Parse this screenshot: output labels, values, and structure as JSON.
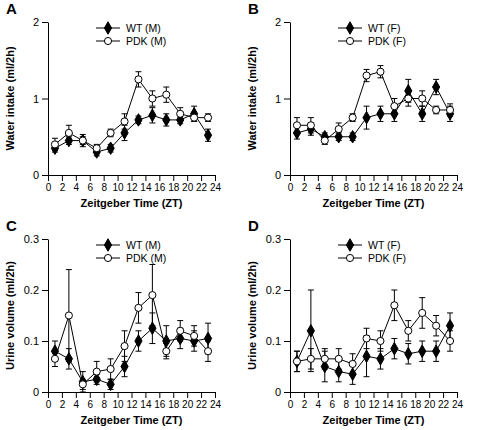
{
  "chart_data": [
    {
      "type": "line",
      "title": "A",
      "x_label": "Zeitgeber Time (ZT)",
      "y_label": "Water intake (ml/2h)",
      "x": [
        1,
        3,
        5,
        7,
        9,
        11,
        13,
        15,
        17,
        19,
        21,
        23
      ],
      "xlim": [
        0,
        24
      ],
      "xticks": [
        0,
        2,
        4,
        6,
        8,
        10,
        12,
        14,
        16,
        18,
        20,
        22,
        24
      ],
      "ylim": [
        0,
        2
      ],
      "yticks": [
        0,
        1,
        2
      ],
      "legend": "upper left",
      "series": [
        {
          "name": "WT (M)",
          "color": "#000000",
          "marker": "diamond",
          "values": [
            0.35,
            0.45,
            0.45,
            0.3,
            0.35,
            0.55,
            0.72,
            0.78,
            0.72,
            0.72,
            0.8,
            0.52
          ],
          "errors": [
            0.05,
            0.05,
            0.05,
            0.05,
            0.05,
            0.1,
            0.05,
            0.1,
            0.08,
            0.05,
            0.1,
            0.08
          ]
        },
        {
          "name": "PDK (M)",
          "color": "#000000",
          "marker": "circle-open",
          "values": [
            0.4,
            0.55,
            0.45,
            0.35,
            0.55,
            0.7,
            1.25,
            1.0,
            1.05,
            0.8,
            0.75,
            0.75
          ],
          "errors": [
            0.08,
            0.1,
            0.08,
            0.05,
            0.05,
            0.1,
            0.1,
            0.1,
            0.1,
            0.08,
            0.05,
            0.05
          ]
        }
      ]
    },
    {
      "type": "line",
      "title": "B",
      "x_label": "Zeitgeber Time (ZT)",
      "y_label": "Water intake (ml/2h)",
      "x": [
        1,
        3,
        5,
        7,
        9,
        11,
        13,
        15,
        17,
        19,
        21,
        23
      ],
      "xlim": [
        0,
        24
      ],
      "xticks": [
        0,
        2,
        4,
        6,
        8,
        10,
        12,
        14,
        16,
        18,
        20,
        22,
        24
      ],
      "ylim": [
        0,
        2
      ],
      "yticks": [
        0,
        1,
        2
      ],
      "legend": "upper left",
      "series": [
        {
          "name": "WT (F)",
          "color": "#000000",
          "marker": "diamond",
          "values": [
            0.55,
            0.6,
            0.5,
            0.5,
            0.5,
            0.75,
            0.8,
            0.8,
            1.1,
            0.8,
            1.15,
            0.8
          ],
          "errors": [
            0.08,
            0.08,
            0.05,
            0.05,
            0.05,
            0.15,
            0.1,
            0.1,
            0.15,
            0.1,
            0.1,
            0.1
          ]
        },
        {
          "name": "PDK (F)",
          "color": "#000000",
          "marker": "circle-open",
          "values": [
            0.65,
            0.65,
            0.45,
            0.6,
            0.75,
            1.3,
            1.35,
            0.9,
            1.0,
            1.0,
            0.85,
            0.85
          ],
          "errors": [
            0.1,
            0.1,
            0.05,
            0.08,
            0.05,
            0.08,
            0.08,
            0.1,
            0.1,
            0.1,
            0.05,
            0.08
          ]
        }
      ]
    },
    {
      "type": "line",
      "title": "C",
      "x_label": "Zeitgeber Time (ZT)",
      "y_label": "Urine volume (ml/2h)",
      "x": [
        1,
        3,
        5,
        7,
        9,
        11,
        13,
        15,
        17,
        19,
        21,
        23
      ],
      "xlim": [
        0,
        24
      ],
      "xticks": [
        0,
        2,
        4,
        6,
        8,
        10,
        12,
        14,
        16,
        18,
        20,
        22,
        24
      ],
      "ylim": [
        0,
        0.3
      ],
      "yticks": [
        0,
        0.1,
        0.2,
        0.3
      ],
      "legend": "upper left",
      "series": [
        {
          "name": "WT (M)",
          "color": "#000000",
          "marker": "diamond",
          "values": [
            0.08,
            0.065,
            0.02,
            0.025,
            0.015,
            0.05,
            0.1,
            0.125,
            0.1,
            0.105,
            0.1,
            0.105
          ],
          "errors": [
            0.02,
            0.02,
            0.02,
            0.01,
            0.01,
            0.02,
            0.02,
            0.03,
            0.03,
            0.02,
            0.02,
            0.03
          ]
        },
        {
          "name": "PDK (M)",
          "color": "#000000",
          "marker": "circle-open",
          "values": [
            0.065,
            0.15,
            0.015,
            0.04,
            0.045,
            0.09,
            0.165,
            0.19,
            0.08,
            0.12,
            0.11,
            0.08
          ],
          "errors": [
            0.015,
            0.09,
            0.01,
            0.02,
            0.02,
            0.03,
            0.03,
            0.06,
            0.015,
            0.02,
            0.02,
            0.02
          ]
        }
      ]
    },
    {
      "type": "line",
      "title": "D",
      "x_label": "Zeitgeber Time (ZT)",
      "y_label": "Urine volume (ml/2h)",
      "x": [
        1,
        3,
        5,
        7,
        9,
        11,
        13,
        15,
        17,
        19,
        21,
        23
      ],
      "xlim": [
        0,
        24
      ],
      "xticks": [
        0,
        2,
        4,
        6,
        8,
        10,
        12,
        14,
        16,
        18,
        20,
        22,
        24
      ],
      "ylim": [
        0,
        0.3
      ],
      "yticks": [
        0,
        0.1,
        0.2,
        0.3
      ],
      "legend": "upper left",
      "series": [
        {
          "name": "WT (F)",
          "color": "#000000",
          "marker": "diamond",
          "values": [
            0.06,
            0.12,
            0.05,
            0.04,
            0.035,
            0.07,
            0.065,
            0.085,
            0.075,
            0.08,
            0.08,
            0.13
          ],
          "errors": [
            0.02,
            0.08,
            0.03,
            0.02,
            0.02,
            0.04,
            0.02,
            0.02,
            0.02,
            0.02,
            0.02,
            0.025
          ]
        },
        {
          "name": "PDK (F)",
          "color": "#000000",
          "marker": "circle-open",
          "values": [
            0.06,
            0.065,
            0.065,
            0.065,
            0.055,
            0.105,
            0.1,
            0.17,
            0.12,
            0.155,
            0.13,
            0.1
          ],
          "errors": [
            0.02,
            0.02,
            0.02,
            0.02,
            0.02,
            0.02,
            0.02,
            0.03,
            0.02,
            0.03,
            0.02,
            0.02
          ]
        }
      ]
    }
  ]
}
